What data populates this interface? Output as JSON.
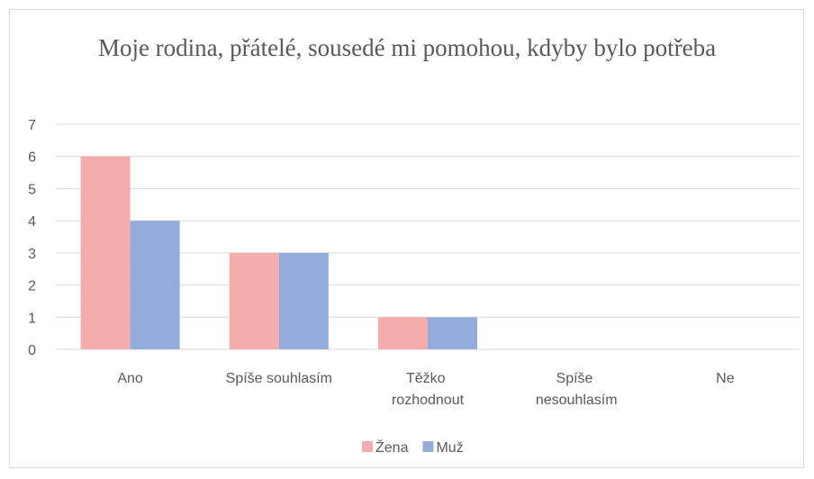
{
  "chart_data": {
    "type": "bar",
    "title": "Moje rodina, přátelé, sousedé mi pomohou, kdyby bylo potřeba",
    "categories": [
      "Ano",
      "Spíše souhlasím",
      "Těžko rozhodnout",
      "Spíše nesouhlasím",
      "Ne"
    ],
    "series": [
      {
        "name": "Žena",
        "color": "#f4acac",
        "values": [
          6,
          3,
          1,
          0,
          0
        ]
      },
      {
        "name": "Muž",
        "color": "#93acdc",
        "values": [
          4,
          3,
          1,
          0,
          0
        ]
      }
    ],
    "ylim": [
      0,
      7
    ],
    "yticks": [
      0,
      1,
      2,
      3,
      4,
      5,
      6,
      7
    ],
    "grid": true,
    "legend": "bottom"
  }
}
